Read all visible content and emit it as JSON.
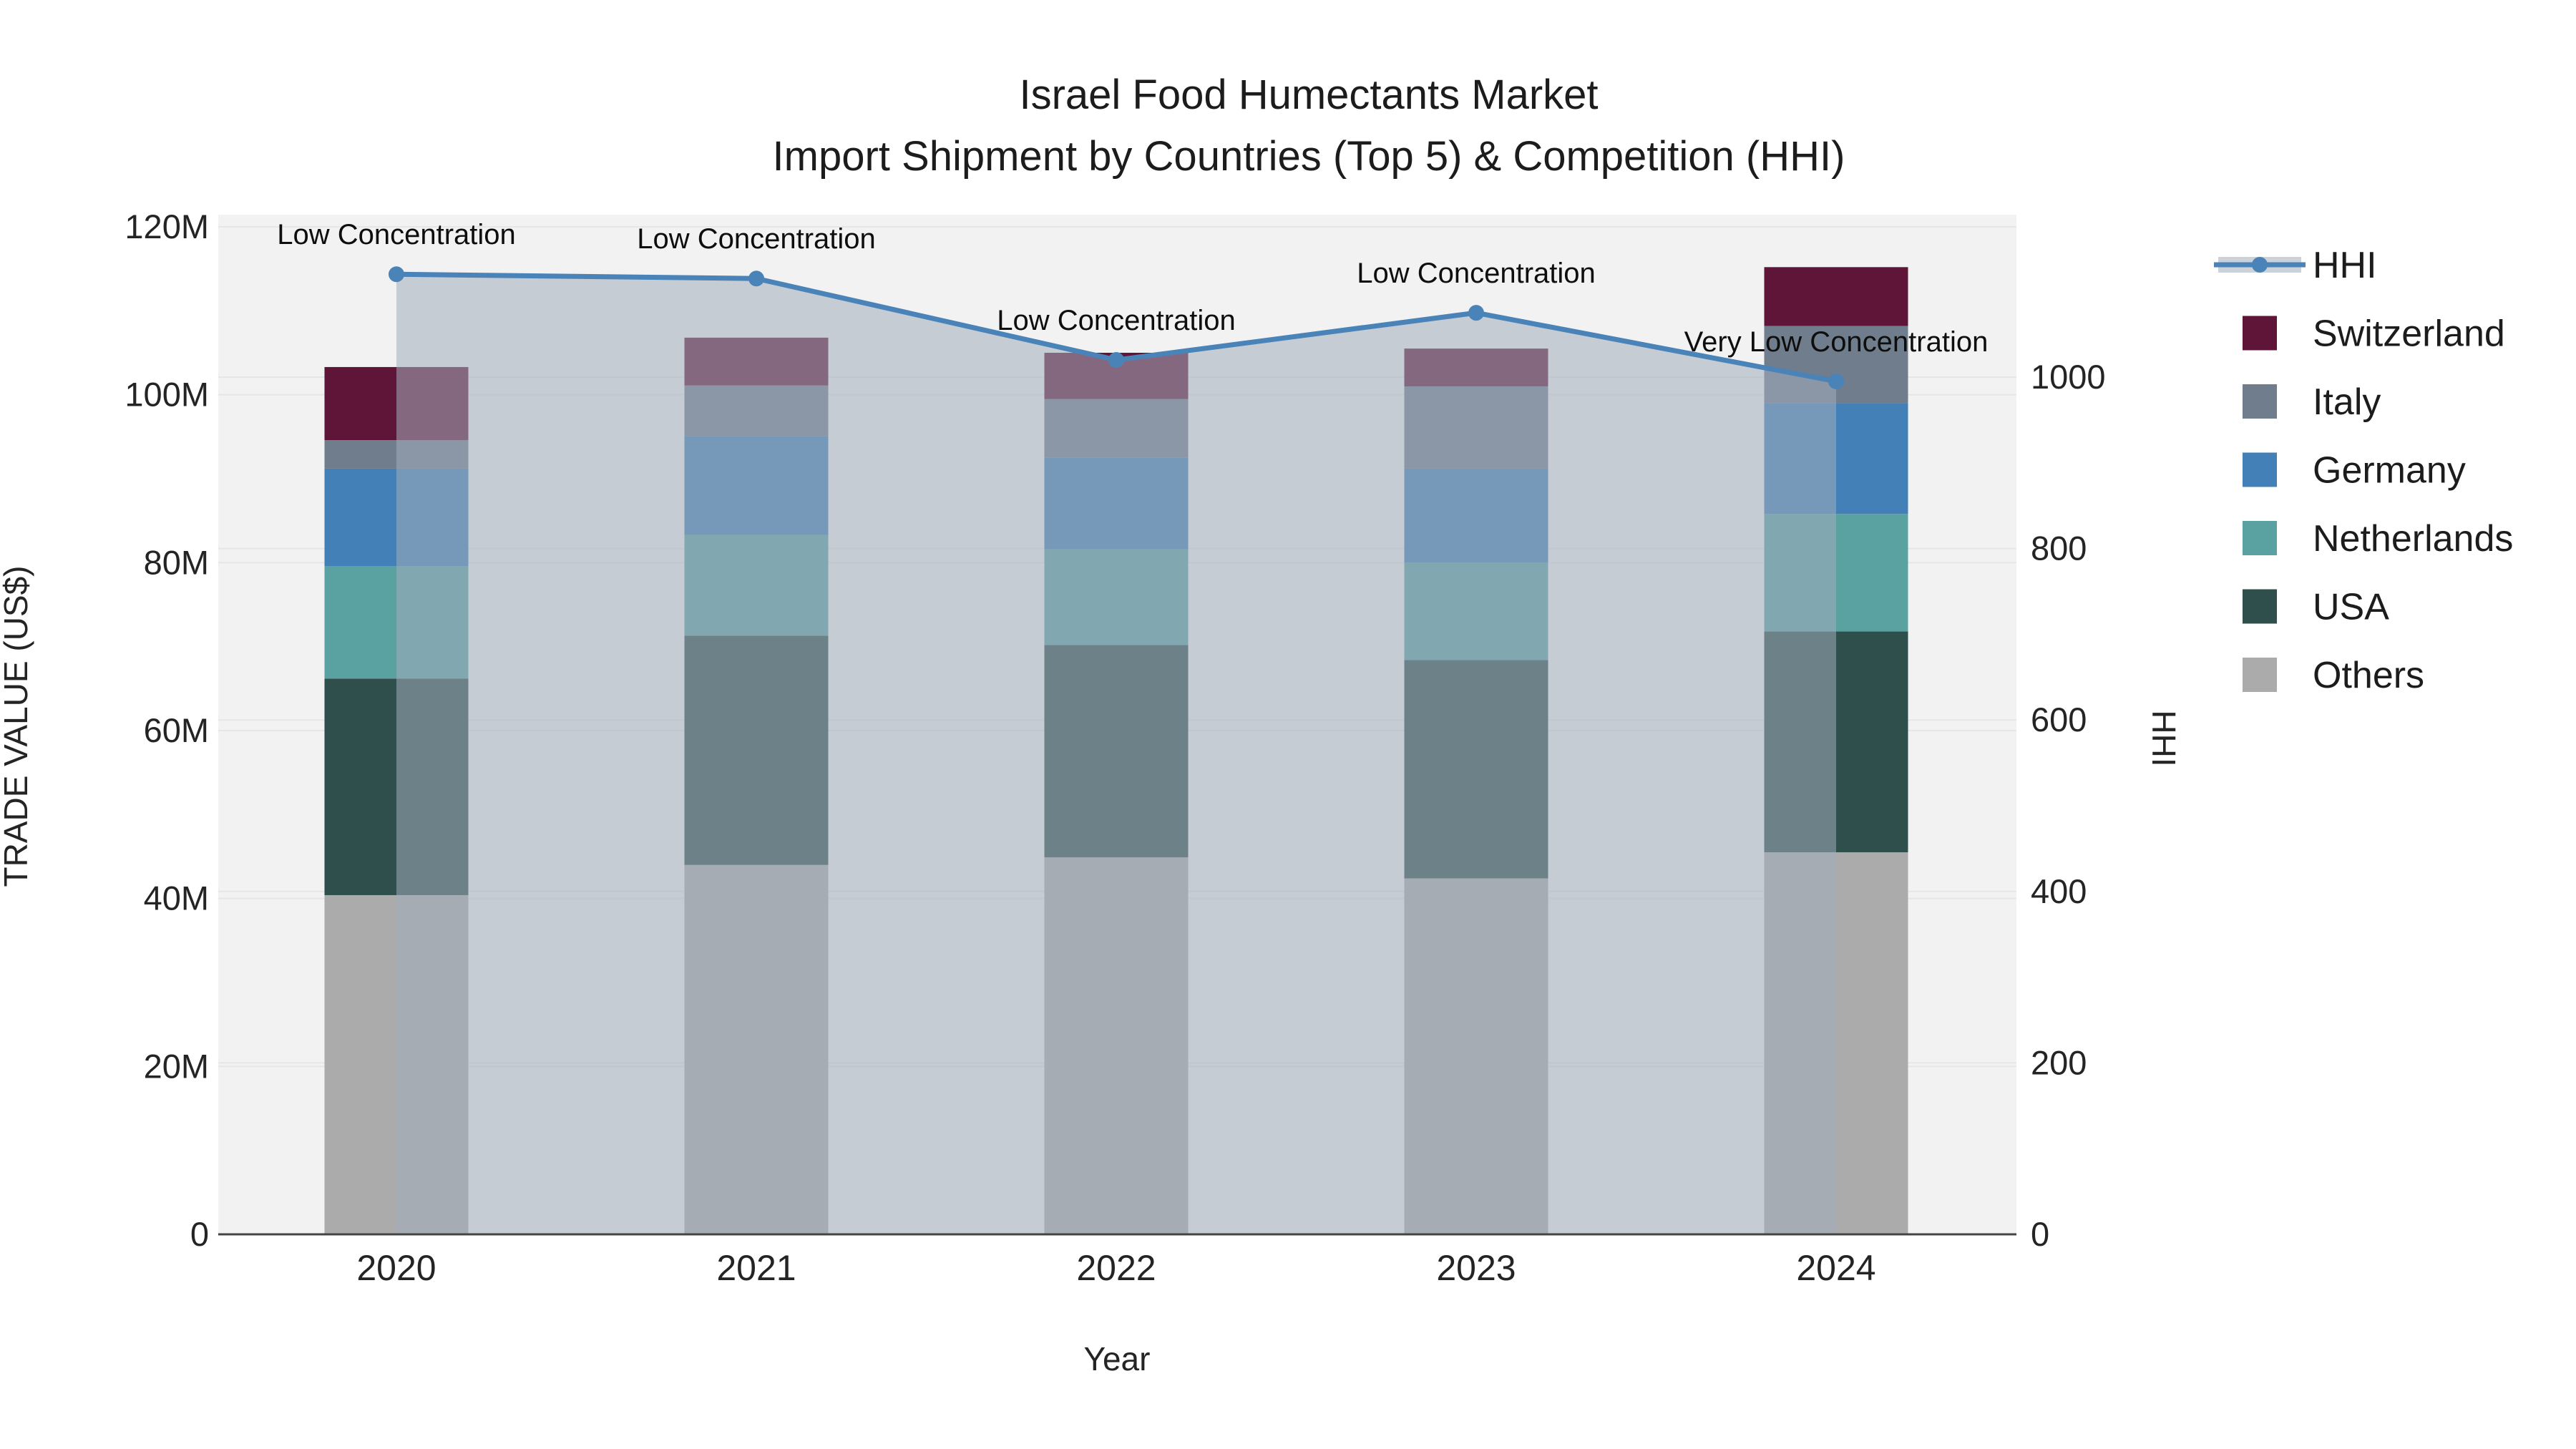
{
  "title": {
    "line1": "Israel Food Humectants Market",
    "line2": "Import Shipment by Countries (Top 5) & Competition (HHI)"
  },
  "chart_data": {
    "type": "bar+line combo (stacked bars, left axis; HHI line with area fill, right axis)",
    "categories": [
      "2020",
      "2021",
      "2022",
      "2023",
      "2024"
    ],
    "bar_unit": "million US$",
    "series": [
      {
        "name": "Others",
        "color": "#ababab",
        "values": [
          40.4,
          44.0,
          44.9,
          42.4,
          45.5
        ]
      },
      {
        "name": "USA",
        "color": "#2e4f4b",
        "values": [
          25.8,
          27.3,
          25.3,
          26.0,
          26.3
        ]
      },
      {
        "name": "Netherlands",
        "color": "#5aa2a2",
        "values": [
          13.4,
          12.0,
          11.4,
          11.6,
          14.0
        ]
      },
      {
        "name": "Germany",
        "color": "#4280b7",
        "values": [
          11.6,
          11.8,
          10.9,
          11.2,
          13.2
        ]
      },
      {
        "name": "Italy",
        "color": "#6f7d8c",
        "values": [
          3.4,
          6.0,
          7.0,
          9.8,
          9.2
        ]
      },
      {
        "name": "Switzerland",
        "color": "#5f1537",
        "values": [
          8.7,
          5.7,
          5.5,
          4.5,
          7.0
        ]
      }
    ],
    "totals": [
      103.3,
      106.8,
      105.0,
      105.5,
      115.2
    ],
    "line": {
      "name": "HHI",
      "color": "#4a83b8",
      "fill": "rgba(163,173,188,0.55)",
      "values": [
        1120,
        1115,
        1020,
        1075,
        995
      ]
    },
    "annotations": [
      {
        "x": "2020",
        "text": "Low Concentration"
      },
      {
        "x": "2021",
        "text": "Low Concentration"
      },
      {
        "x": "2022",
        "text": "Low Concentration"
      },
      {
        "x": "2023",
        "text": "Low Concentration"
      },
      {
        "x": "2024",
        "text": "Very Low Concentration"
      }
    ],
    "y_left": {
      "title": "TRADE VALUE (US$)",
      "tick_values": [
        0,
        20,
        40,
        60,
        80,
        100,
        120
      ],
      "tick_labels": [
        "0",
        "20M",
        "40M",
        "60M",
        "80M",
        "100M",
        "120M"
      ],
      "range": [
        0,
        121.5
      ]
    },
    "y_right": {
      "title": "HHI",
      "tick_values": [
        0,
        200,
        400,
        600,
        800,
        1000
      ],
      "tick_labels": [
        "0",
        "200",
        "400",
        "600",
        "800",
        "1000"
      ],
      "range": [
        0,
        1190
      ]
    },
    "x": {
      "title": "Year"
    },
    "legend_position": "right",
    "grid": true
  },
  "legend": {
    "items": [
      {
        "label": "HHI",
        "swatch": "line",
        "color": "#4a83b8"
      },
      {
        "label": "Switzerland",
        "swatch": "square",
        "color": "#5f1537"
      },
      {
        "label": "Italy",
        "swatch": "square",
        "color": "#6f7d8c"
      },
      {
        "label": "Germany",
        "swatch": "square",
        "color": "#4280b7"
      },
      {
        "label": "Netherlands",
        "swatch": "square",
        "color": "#5aa2a2"
      },
      {
        "label": "USA",
        "swatch": "square",
        "color": "#2e4f4b"
      },
      {
        "label": "Others",
        "swatch": "square",
        "color": "#ababab"
      }
    ]
  }
}
